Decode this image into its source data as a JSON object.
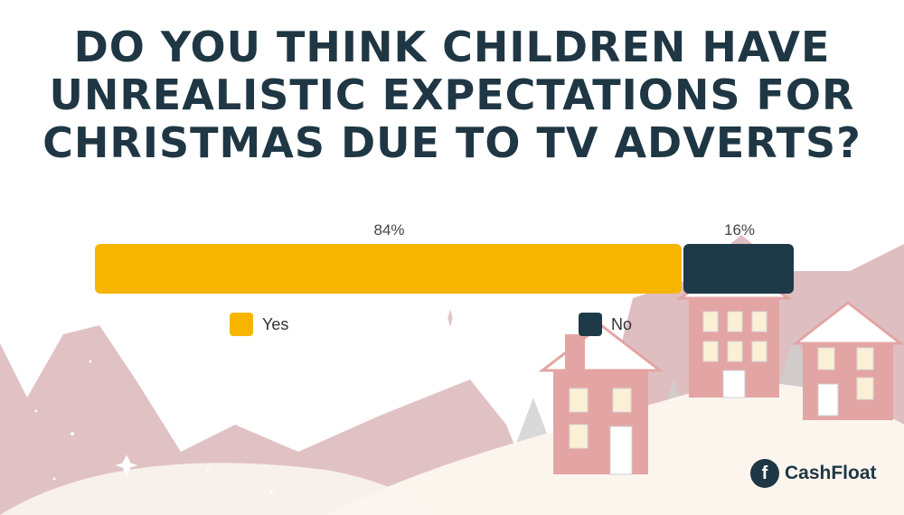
{
  "title_lines": [
    "DO YOU THINK CHILDREN HAVE",
    "UNREALISTIC EXPECTATIONS FOR",
    "CHRISTMAS DUE TO TV ADVERTS?"
  ],
  "chart_data": {
    "type": "bar",
    "orientation": "horizontal-stacked",
    "categories": [
      "Yes",
      "No"
    ],
    "values": [
      84,
      16
    ],
    "value_labels": [
      "84%",
      "16%"
    ],
    "colors": [
      "#f7b500",
      "#1e3a48"
    ],
    "legend": [
      {
        "label": "Yes",
        "color": "#f7b500"
      },
      {
        "label": "No",
        "color": "#1e3a48"
      }
    ],
    "xlim": [
      0,
      100
    ],
    "legend_placement": "bottom"
  },
  "brand": {
    "logo_mark": "f",
    "name": "CashFloat",
    "text_color": "#1f3744"
  },
  "colors": {
    "title": "#1f3744",
    "background_mountain": "#d9b3b6",
    "snow": "#fbf5ee",
    "house": "#e3a5a4"
  },
  "icons": [
    "cashfloat-logo-icon",
    "sparkle-icon"
  ]
}
